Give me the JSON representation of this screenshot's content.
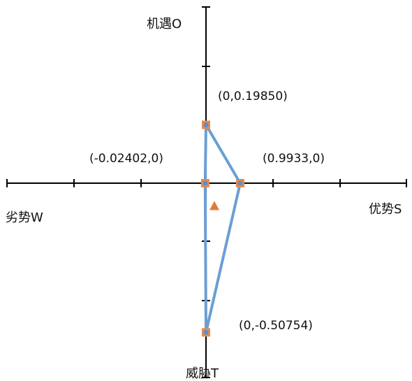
{
  "chart_data": {
    "type": "scatter",
    "title": "",
    "axis_labels": {
      "top": "机遇O",
      "bottom": "威胁T",
      "left": "劣势W",
      "right": "优势S"
    },
    "points": [
      {
        "x": 0,
        "y": 0.1985,
        "label": "(0,0.19850)"
      },
      {
        "x": 0.9933,
        "y": 0,
        "label": "(0.9933,0)"
      },
      {
        "x": 0,
        "y": -0.50754,
        "label": "(0,-0.50754)"
      },
      {
        "x": -0.02402,
        "y": 0,
        "label": "(-0.02402,0)"
      }
    ],
    "polygon_order": [
      0,
      1,
      2,
      3
    ],
    "centroid_marker": {
      "x": 0.2428,
      "y": -0.0773
    },
    "colors": {
      "line": "#6a9fd4",
      "marker_square": "#e8894a",
      "marker_dot": "#5b8fd0",
      "centroid": "#e07b3a",
      "axis": "#000000"
    }
  }
}
